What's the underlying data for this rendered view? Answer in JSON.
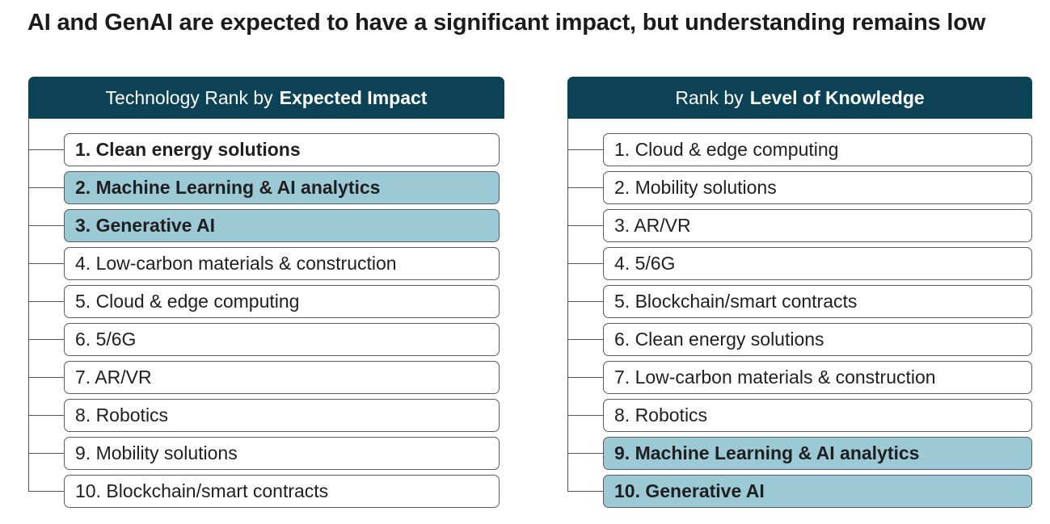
{
  "title": "AI and GenAI are expected to have a significant impact, but understanding remains low",
  "colors": {
    "header_bg": "#0b4256",
    "highlight_bg": "#9cc9d6",
    "box_border": "#5b5b5b"
  },
  "left": {
    "header_plain": "Technology Rank by",
    "header_bold": "Expected Impact",
    "items": [
      {
        "label": "1. Clean energy solutions",
        "bold": true,
        "highlight": false
      },
      {
        "label": "2. Machine Learning & AI analytics",
        "bold": true,
        "highlight": true
      },
      {
        "label": "3. Generative AI",
        "bold": true,
        "highlight": true
      },
      {
        "label": "4. Low-carbon materials & construction",
        "bold": false,
        "highlight": false
      },
      {
        "label": "5. Cloud & edge computing",
        "bold": false,
        "highlight": false
      },
      {
        "label": "6. 5/6G",
        "bold": false,
        "highlight": false
      },
      {
        "label": "7. AR/VR",
        "bold": false,
        "highlight": false
      },
      {
        "label": "8. Robotics",
        "bold": false,
        "highlight": false
      },
      {
        "label": "9. Mobility solutions",
        "bold": false,
        "highlight": false
      },
      {
        "label": "10. Blockchain/smart contracts",
        "bold": false,
        "highlight": false
      }
    ]
  },
  "right": {
    "header_plain": "Rank by",
    "header_bold": "Level of Knowledge",
    "items": [
      {
        "label": "1. Cloud & edge computing",
        "bold": false,
        "highlight": false
      },
      {
        "label": "2. Mobility solutions",
        "bold": false,
        "highlight": false
      },
      {
        "label": "3. AR/VR",
        "bold": false,
        "highlight": false
      },
      {
        "label": "4. 5/6G",
        "bold": false,
        "highlight": false
      },
      {
        "label": "5. Blockchain/smart contracts",
        "bold": false,
        "highlight": false
      },
      {
        "label": "6. Clean energy solutions",
        "bold": false,
        "highlight": false
      },
      {
        "label": "7. Low-carbon materials & construction",
        "bold": false,
        "highlight": false
      },
      {
        "label": "8. Robotics",
        "bold": false,
        "highlight": false
      },
      {
        "label": "9. Machine Learning & AI analytics",
        "bold": true,
        "highlight": true
      },
      {
        "label": "10. Generative AI",
        "bold": true,
        "highlight": true
      }
    ]
  }
}
